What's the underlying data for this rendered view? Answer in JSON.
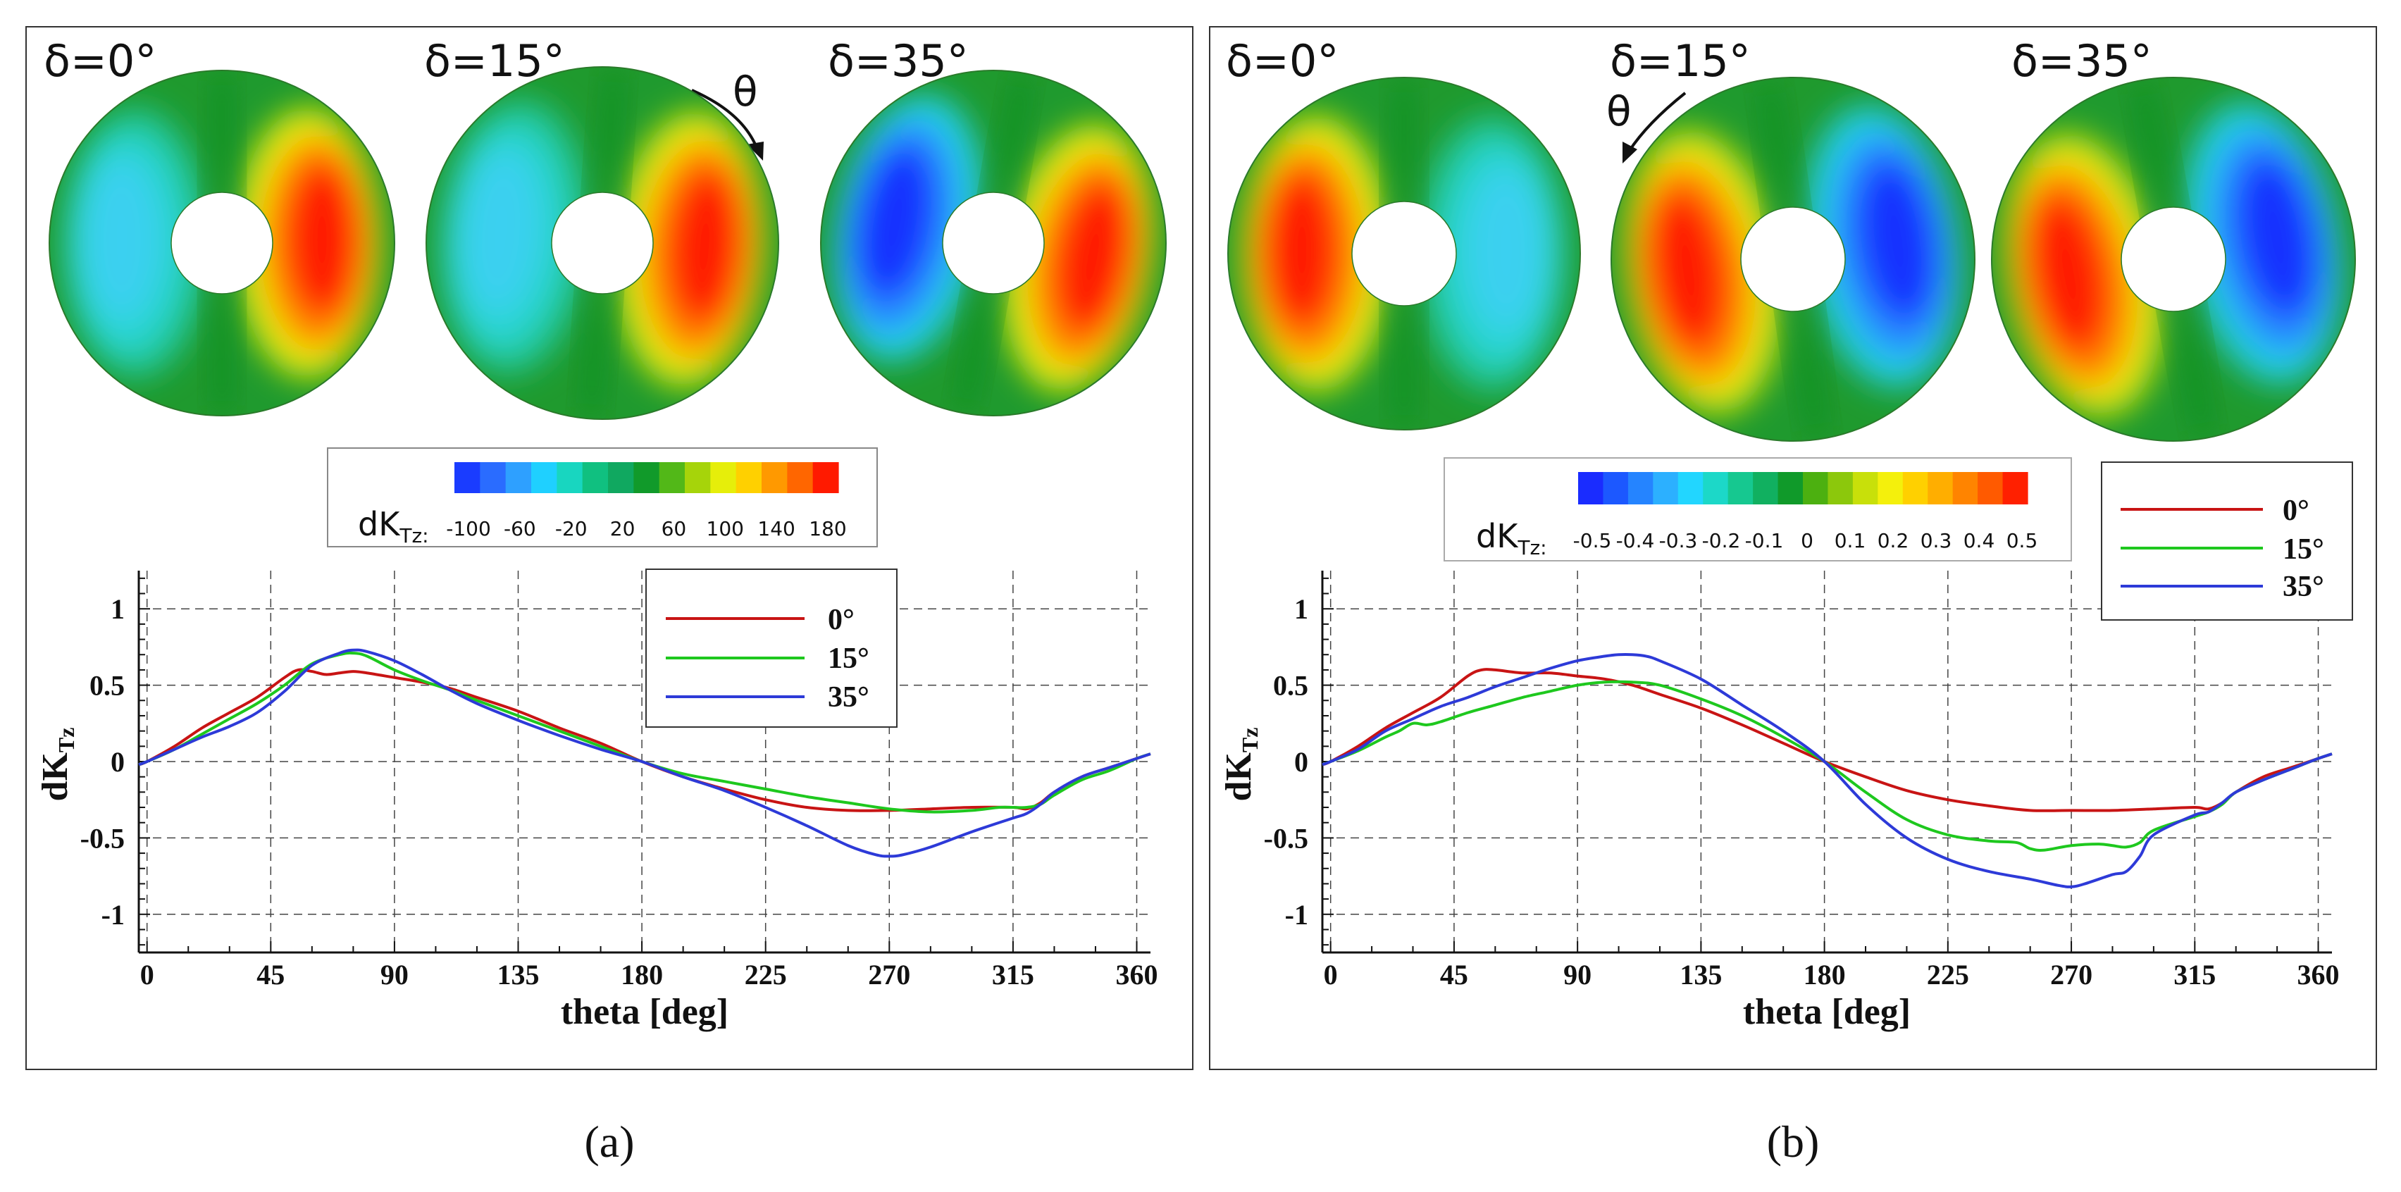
{
  "panels": [
    {
      "id": "a",
      "caption": "(a)",
      "theta_symbol": "θ",
      "theta_arrow": "clockwise",
      "disks": [
        {
          "label": "δ=0°",
          "pattern": {
            "left": 0.35,
            "right": 0.92,
            "rot": 0,
            "flip": 1
          }
        },
        {
          "label": "δ=15°",
          "pattern": {
            "left": 0.4,
            "right": 0.95,
            "rot": 4,
            "flip": 1
          }
        },
        {
          "label": "δ=35°",
          "pattern": {
            "left": 1.0,
            "right": 0.88,
            "rot": 10,
            "flip": 1
          }
        }
      ],
      "colorbar": {
        "label_main": "dK",
        "label_sub": "Tz:",
        "ticks": [
          "-100",
          "-60",
          "-20",
          "20",
          "60",
          "100",
          "140",
          "180"
        ],
        "colors": [
          "#1a3cff",
          "#2a6cff",
          "#2ea0ff",
          "#1fd0ff",
          "#18d6c0",
          "#10c080",
          "#10a860",
          "#119a2a",
          "#52b818",
          "#a6d40a",
          "#e6ee0a",
          "#ffd000",
          "#ff9900",
          "#ff6600",
          "#ff1a00"
        ]
      }
    },
    {
      "id": "b",
      "caption": "(b)",
      "theta_symbol": "θ",
      "theta_arrow": "counterclockwise",
      "disks": [
        {
          "label": "δ=0°",
          "pattern": {
            "left": 0.88,
            "right": 0.4,
            "rot": 0,
            "flip": -1
          }
        },
        {
          "label": "δ=15°",
          "pattern": {
            "left": 0.98,
            "right": 0.9,
            "rot": -8,
            "flip": -1
          }
        },
        {
          "label": "δ=35°",
          "pattern": {
            "left": 1.0,
            "right": 1.0,
            "rot": -10,
            "flip": -1
          }
        }
      ],
      "colorbar": {
        "label_main": "dK",
        "label_sub": "Tz:",
        "ticks": [
          "-0.5",
          "-0.4",
          "-0.3",
          "-0.2",
          "-0.1",
          "0",
          "0.1",
          "0.2",
          "0.3",
          "0.4",
          "0.5"
        ],
        "colors": [
          "#1a2cff",
          "#1c58ff",
          "#2584ff",
          "#2cb0ff",
          "#22d6ff",
          "#1cd8c8",
          "#16c890",
          "#11b060",
          "#109a2a",
          "#4cb010",
          "#8cc80c",
          "#c8e00a",
          "#f4f00c",
          "#ffd000",
          "#ffae00",
          "#ff8400",
          "#ff5a00",
          "#ff2000"
        ]
      }
    }
  ],
  "chart_data": [
    {
      "type": "line",
      "panel": "a",
      "title": "",
      "xlabel": "theta [deg]",
      "ylabel": "dK",
      "ylabel_sub": "Tz",
      "xlim": [
        -3,
        365
      ],
      "ylim": [
        -1.25,
        1.25
      ],
      "xticks": [
        0,
        45,
        90,
        135,
        180,
        225,
        270,
        315,
        360
      ],
      "xtick_labels": [
        "0",
        "45",
        "90",
        "135",
        "180",
        "225",
        "270",
        "315",
        "360"
      ],
      "yticks": [
        1,
        0.5,
        0,
        -0.5,
        -1
      ],
      "ytick_labels": [
        "1",
        "0.5",
        "0",
        "-0.5",
        "-1"
      ],
      "grid": true,
      "legend_position": "top-right",
      "series": [
        {
          "name": "0°",
          "color": "#c81414",
          "x": [
            -3,
            0,
            10,
            20,
            30,
            40,
            50,
            55,
            60,
            65,
            70,
            75,
            80,
            90,
            100,
            110,
            120,
            135,
            150,
            165,
            180,
            195,
            210,
            225,
            240,
            255,
            270,
            285,
            300,
            315,
            320,
            325,
            330,
            340,
            350,
            360,
            365
          ],
          "y": [
            -0.02,
            0,
            0.1,
            0.22,
            0.32,
            0.42,
            0.55,
            0.6,
            0.59,
            0.57,
            0.58,
            0.59,
            0.58,
            0.55,
            0.52,
            0.48,
            0.42,
            0.33,
            0.22,
            0.12,
            0,
            -0.1,
            -0.18,
            -0.25,
            -0.3,
            -0.32,
            -0.32,
            -0.31,
            -0.3,
            -0.3,
            -0.31,
            -0.27,
            -0.2,
            -0.1,
            -0.04,
            0.02,
            0.05
          ]
        },
        {
          "name": "15°",
          "color": "#1ec81e",
          "x": [
            -3,
            0,
            10,
            20,
            30,
            40,
            50,
            60,
            70,
            75,
            80,
            90,
            100,
            110,
            120,
            135,
            150,
            165,
            180,
            195,
            210,
            225,
            240,
            255,
            270,
            285,
            300,
            310,
            315,
            320,
            325,
            330,
            340,
            350,
            360,
            365
          ],
          "y": [
            -0.02,
            0,
            0.08,
            0.18,
            0.28,
            0.38,
            0.5,
            0.64,
            0.7,
            0.71,
            0.69,
            0.6,
            0.53,
            0.47,
            0.4,
            0.3,
            0.2,
            0.1,
            0,
            -0.08,
            -0.13,
            -0.18,
            -0.23,
            -0.27,
            -0.31,
            -0.33,
            -0.32,
            -0.3,
            -0.3,
            -0.3,
            -0.28,
            -0.22,
            -0.12,
            -0.06,
            0.02,
            0.05
          ]
        },
        {
          "name": "35°",
          "color": "#2d3ad8",
          "x": [
            -3,
            0,
            10,
            20,
            30,
            40,
            50,
            60,
            70,
            75,
            80,
            90,
            100,
            110,
            120,
            135,
            150,
            165,
            180,
            195,
            210,
            225,
            240,
            255,
            265,
            270,
            275,
            285,
            300,
            315,
            320,
            325,
            330,
            340,
            350,
            360,
            365
          ],
          "y": [
            -0.02,
            0,
            0.08,
            0.16,
            0.23,
            0.32,
            0.46,
            0.63,
            0.71,
            0.73,
            0.72,
            0.66,
            0.57,
            0.47,
            0.38,
            0.27,
            0.17,
            0.08,
            0,
            -0.1,
            -0.19,
            -0.3,
            -0.42,
            -0.55,
            -0.61,
            -0.62,
            -0.61,
            -0.56,
            -0.46,
            -0.37,
            -0.34,
            -0.28,
            -0.2,
            -0.1,
            -0.04,
            0.02,
            0.05
          ]
        }
      ]
    },
    {
      "type": "line",
      "panel": "b",
      "title": "",
      "xlabel": "theta [deg]",
      "ylabel": "dK",
      "ylabel_sub": "Tz",
      "xlim": [
        -3,
        365
      ],
      "ylim": [
        -1.25,
        1.25
      ],
      "xticks": [
        0,
        45,
        90,
        135,
        180,
        225,
        270,
        315,
        360
      ],
      "xtick_labels": [
        "0",
        "45",
        "90",
        "135",
        "180",
        "225",
        "270",
        "315",
        "360"
      ],
      "yticks": [
        1,
        0.5,
        0,
        -0.5,
        -1
      ],
      "ytick_labels": [
        "1",
        "0.5",
        "0",
        "-0.5",
        "-1"
      ],
      "grid": true,
      "legend_position": "top-right, outside plot",
      "series": [
        {
          "name": "0°",
          "color": "#c81414",
          "x": [
            -3,
            0,
            10,
            20,
            30,
            40,
            50,
            55,
            60,
            70,
            80,
            90,
            100,
            110,
            120,
            135,
            150,
            165,
            180,
            195,
            210,
            225,
            240,
            255,
            270,
            285,
            300,
            315,
            320,
            325,
            330,
            340,
            350,
            360,
            365
          ],
          "y": [
            -0.02,
            0,
            0.1,
            0.22,
            0.32,
            0.42,
            0.56,
            0.6,
            0.6,
            0.58,
            0.58,
            0.56,
            0.54,
            0.5,
            0.44,
            0.35,
            0.24,
            0.12,
            0,
            -0.1,
            -0.19,
            -0.25,
            -0.29,
            -0.32,
            -0.32,
            -0.32,
            -0.31,
            -0.3,
            -0.31,
            -0.27,
            -0.2,
            -0.1,
            -0.04,
            0.02,
            0.05
          ]
        },
        {
          "name": "15°",
          "color": "#1ec81e",
          "x": [
            -3,
            0,
            10,
            20,
            25,
            30,
            35,
            40,
            50,
            60,
            70,
            80,
            90,
            100,
            110,
            120,
            135,
            150,
            165,
            180,
            195,
            210,
            225,
            240,
            250,
            255,
            260,
            270,
            280,
            285,
            290,
            295,
            300,
            315,
            320,
            325,
            330,
            340,
            350,
            360,
            365
          ],
          "y": [
            -0.02,
            0,
            0.07,
            0.16,
            0.2,
            0.25,
            0.24,
            0.26,
            0.32,
            0.37,
            0.42,
            0.46,
            0.5,
            0.52,
            0.52,
            0.5,
            0.41,
            0.3,
            0.16,
            0,
            -0.2,
            -0.38,
            -0.48,
            -0.52,
            -0.53,
            -0.57,
            -0.58,
            -0.55,
            -0.54,
            -0.55,
            -0.56,
            -0.53,
            -0.45,
            -0.36,
            -0.33,
            -0.28,
            -0.2,
            -0.12,
            -0.05,
            0.02,
            0.05
          ]
        },
        {
          "name": "35°",
          "color": "#2d3ad8",
          "x": [
            -3,
            0,
            10,
            20,
            30,
            40,
            50,
            60,
            70,
            80,
            90,
            100,
            105,
            110,
            115,
            120,
            135,
            150,
            165,
            180,
            195,
            210,
            225,
            240,
            255,
            265,
            270,
            275,
            285,
            290,
            295,
            300,
            315,
            320,
            325,
            330,
            340,
            350,
            360,
            365
          ],
          "y": [
            -0.02,
            0,
            0.08,
            0.2,
            0.28,
            0.36,
            0.42,
            0.49,
            0.55,
            0.61,
            0.66,
            0.69,
            0.7,
            0.7,
            0.69,
            0.66,
            0.54,
            0.37,
            0.2,
            0,
            -0.28,
            -0.5,
            -0.64,
            -0.72,
            -0.77,
            -0.81,
            -0.82,
            -0.8,
            -0.74,
            -0.72,
            -0.62,
            -0.48,
            -0.35,
            -0.33,
            -0.27,
            -0.2,
            -0.12,
            -0.05,
            0.02,
            0.05
          ]
        }
      ]
    }
  ]
}
